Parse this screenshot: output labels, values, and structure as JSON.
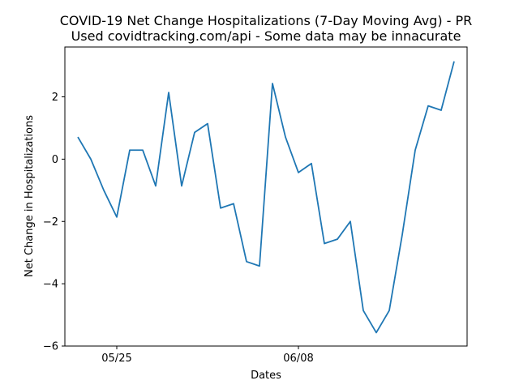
{
  "chart_data": {
    "type": "line",
    "title": "COVID-19 Net Change Hospitalizations (7-Day Moving Avg) - PR",
    "subtitle": "Used covidtracking.com/api - Some data may be innacurate",
    "xlabel": "Dates",
    "ylabel": "Net Change in Hospitalizations",
    "x": [
      "2020-05-22",
      "2020-05-23",
      "2020-05-24",
      "2020-05-25",
      "2020-05-26",
      "2020-05-27",
      "2020-05-28",
      "2020-05-29",
      "2020-05-30",
      "2020-05-31",
      "2020-06-01",
      "2020-06-02",
      "2020-06-03",
      "2020-06-04",
      "2020-06-05",
      "2020-06-06",
      "2020-06-07",
      "2020-06-08",
      "2020-06-09",
      "2020-06-10",
      "2020-06-11",
      "2020-06-12",
      "2020-06-13",
      "2020-06-14",
      "2020-06-15",
      "2020-06-16",
      "2020-06-17",
      "2020-06-18",
      "2020-06-19",
      "2020-06-20"
    ],
    "xlim": [
      "2020-05-21",
      "2020-06-21"
    ],
    "xticks": [
      {
        "value": "2020-05-25",
        "label": "05/25"
      },
      {
        "value": "2020-06-08",
        "label": "06/08"
      }
    ],
    "series": [
      {
        "values": [
          0.71,
          0.0,
          -1.0,
          -1.86,
          0.29,
          0.29,
          -0.86,
          2.14,
          -0.86,
          0.86,
          1.14,
          -1.57,
          -1.43,
          -3.29,
          -3.43,
          2.43,
          0.71,
          -0.43,
          -0.14,
          -2.71,
          -2.57,
          -2.0,
          -4.86,
          -5.57,
          -4.86,
          -2.43,
          0.29,
          1.71,
          1.57,
          3.14
        ],
        "color": "#1f77b4"
      }
    ],
    "ylim": [
      -6.0,
      3.6
    ],
    "yticks": [
      -6,
      -4,
      -2,
      0,
      2
    ],
    "ytick_labels": [
      "−6",
      "−4",
      "−2",
      "0",
      "2"
    ],
    "grid": false,
    "legend": "none"
  }
}
